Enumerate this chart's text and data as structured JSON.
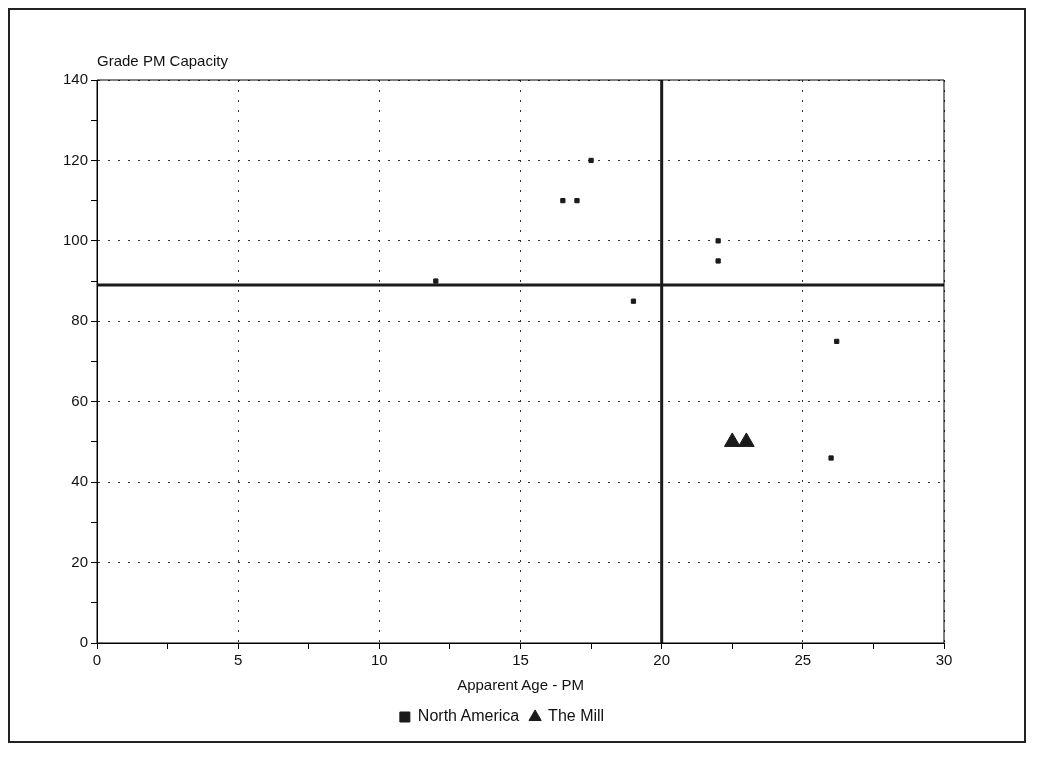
{
  "chart_data": {
    "type": "scatter",
    "ylabel": "Grade PM Capacity",
    "xlabel": "Apparent Age - PM",
    "series": [
      {
        "name": "North America",
        "color": "#1a1a1a",
        "marker": "square",
        "x": [
          12,
          16.5,
          17,
          17.5,
          19,
          22,
          22,
          26.2,
          26
        ],
        "values": [
          90,
          110,
          110,
          120,
          85,
          100,
          95,
          75,
          46
        ]
      },
      {
        "name": "The Mill",
        "color": "#1a1a1a",
        "marker": "triangle",
        "x": [
          22.5,
          23
        ],
        "values": [
          50,
          50
        ]
      }
    ],
    "xlim": [
      0,
      30
    ],
    "xticks": [
      0,
      {
        "value": 2.5,
        "label": null
      },
      5,
      {
        "value": 7.5,
        "label": null
      },
      10,
      {
        "value": 12.5,
        "label": null
      },
      15,
      {
        "value": 17.5,
        "label": null
      },
      20,
      {
        "value": 22.5,
        "label": null
      },
      25,
      {
        "value": 27.5,
        "label": null
      },
      30
    ],
    "ylim": [
      0,
      140
    ],
    "yticks": [
      0,
      {
        "value": 10,
        "label": null
      },
      20,
      {
        "value": 30,
        "label": null
      },
      40,
      {
        "value": 50,
        "label": null
      },
      60,
      {
        "value": 70,
        "label": null
      },
      80,
      {
        "value": 90,
        "label": null
      },
      100,
      {
        "value": 110,
        "label": null
      },
      120,
      {
        "value": 130,
        "label": null
      },
      140
    ],
    "ref_lines": [
      {
        "axis": "x",
        "value": 20,
        "color": "#1a1a1a"
      },
      {
        "axis": "y",
        "value": 89,
        "color": "#1a1a1a"
      }
    ],
    "grid": true,
    "legend": "bottom"
  }
}
